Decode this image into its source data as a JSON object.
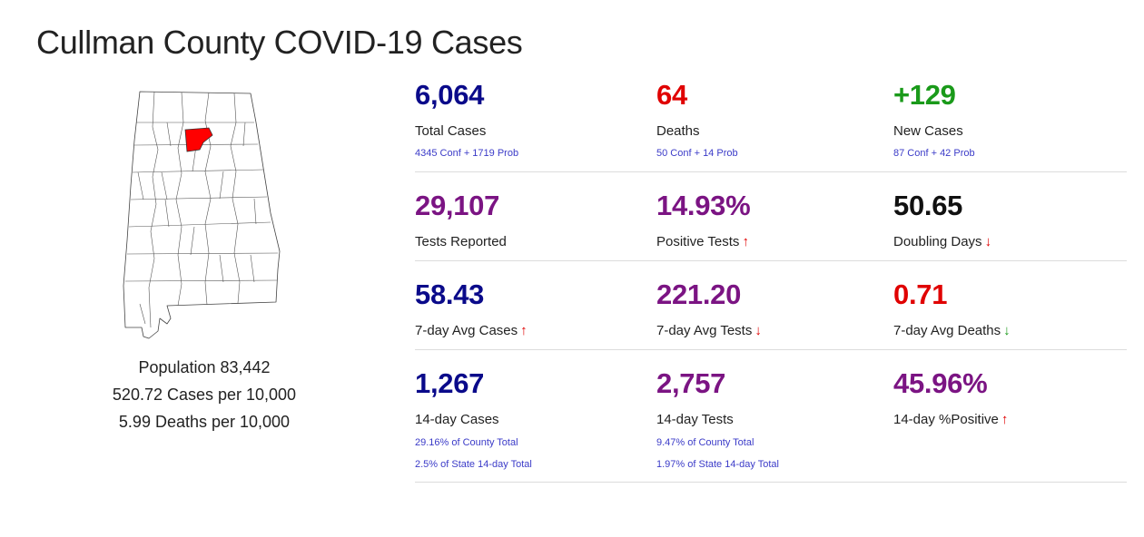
{
  "page": {
    "title": "Cullman County COVID-19 Cases"
  },
  "county": {
    "population": "Population 83,442",
    "cases_per": "520.72 Cases per 10,000",
    "deaths_per": "5.99 Deaths per 10,000"
  },
  "colors": {
    "navy": "#0a0a8a",
    "red": "#e00000",
    "green": "#1a9a1a",
    "purple": "#7b1483",
    "black": "#111111",
    "highlight": "#ff0000"
  },
  "stats": [
    [
      {
        "value": "6,064",
        "label": "Total Cases",
        "color": "navy",
        "subs": [
          "4345 Conf + 1719 Prob"
        ]
      },
      {
        "value": "64",
        "label": "Deaths",
        "color": "red",
        "subs": [
          "50 Conf + 14 Prob"
        ]
      },
      {
        "value": "+129",
        "label": "New Cases",
        "color": "green",
        "subs": [
          "87 Conf + 42 Prob"
        ]
      }
    ],
    [
      {
        "value": "29,107",
        "label": "Tests Reported",
        "color": "purple",
        "subs": []
      },
      {
        "value": "14.93%",
        "label": "Positive Tests",
        "color": "purple",
        "arrow": "up",
        "arrow_color": "red",
        "subs": []
      },
      {
        "value": "50.65",
        "label": "Doubling Days",
        "color": "black",
        "arrow": "down",
        "arrow_color": "red",
        "subs": []
      }
    ],
    [
      {
        "value": "58.43",
        "label": "7-day Avg Cases",
        "color": "navy",
        "arrow": "up",
        "arrow_color": "red",
        "subs": []
      },
      {
        "value": "221.20",
        "label": "7-day Avg Tests",
        "color": "purple",
        "arrow": "down",
        "arrow_color": "red",
        "subs": []
      },
      {
        "value": "0.71",
        "label": "7-day Avg Deaths",
        "color": "red",
        "arrow": "down",
        "arrow_color": "green",
        "subs": []
      }
    ],
    [
      {
        "value": "1,267",
        "label": "14-day Cases",
        "color": "navy",
        "subs": [
          "29.16% of County Total",
          "2.5% of State 14-day Total"
        ]
      },
      {
        "value": "2,757",
        "label": "14-day Tests",
        "color": "purple",
        "subs": [
          "9.47% of County Total",
          "1.97% of State 14-day Total"
        ]
      },
      {
        "value": "45.96%",
        "label": "14-day %Positive",
        "color": "purple",
        "arrow": "up",
        "arrow_color": "red",
        "subs": []
      }
    ]
  ]
}
